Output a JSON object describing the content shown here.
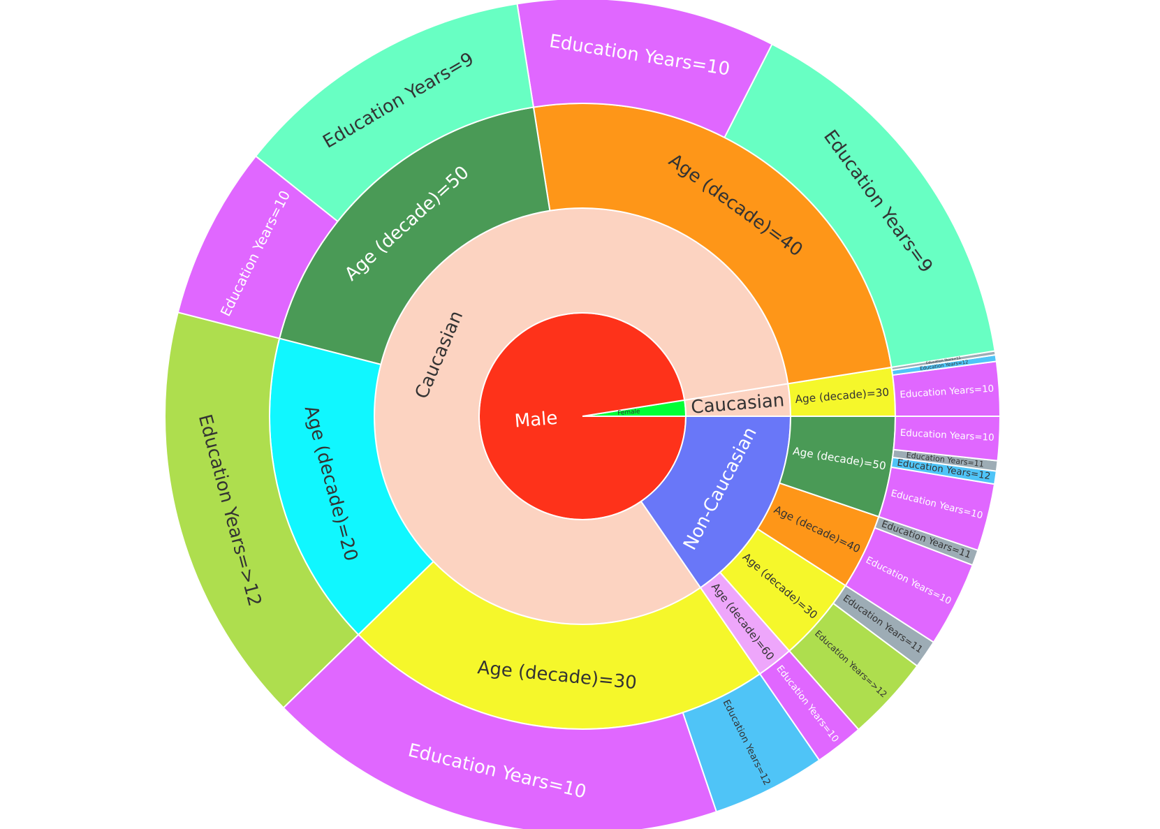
{
  "chart_data": {
    "type": "sunburst",
    "rotation_start": "3 o'clock, counterclockwise",
    "root": {
      "children": [
        {
          "label": "Female",
          "value": 2.5,
          "color": "#00FE35",
          "text_color": "#333333",
          "children": [
            {
              "label": "Caucasian",
              "value": 2.5,
              "color": "#FCD3C1",
              "text_color": "#333333",
              "children": [
                {
                  "label": "Age (decade)=30",
                  "value": 2.5,
                  "color": "#F5F72B",
                  "text_color": "#333333",
                  "children": [
                    {
                      "label": "Education Years=10",
                      "value": 2.1,
                      "color": "#E067FF",
                      "text_color": "#FFFFFF"
                    },
                    {
                      "label": "Education Years=12",
                      "value": 0.25,
                      "color": "#4FC4F7",
                      "text_color": "#333333"
                    },
                    {
                      "label": "Education Years=11",
                      "value": 0.15,
                      "color": "#9DACB5",
                      "text_color": "#333333"
                    }
                  ]
                }
              ]
            }
          ]
        },
        {
          "label": "Male",
          "value": 97.5,
          "color": "#FE321A",
          "text_color": "#FFFFFF",
          "children": [
            {
              "label": "Caucasian",
              "value": 82.1,
              "color": "#FCD3C1",
              "text_color": "#333333",
              "children": [
                {
                  "label": "Age (decade)=40",
                  "value": 25.0,
                  "color": "#FE9618",
                  "text_color": "#333333",
                  "children": [
                    {
                      "label": "Education Years=9",
                      "value": 15.0,
                      "color": "#68FFC3",
                      "text_color": "#333333"
                    },
                    {
                      "label": "Education Years=10",
                      "value": 10.0,
                      "color": "#E067FF",
                      "text_color": "#FFFFFF"
                    }
                  ]
                },
                {
                  "label": "Age (decade)=50",
                  "value": 18.5,
                  "color": "#4A9A56",
                  "text_color": "#FFFFFF",
                  "children": [
                    {
                      "label": "Education Years=9",
                      "value": 11.8,
                      "color": "#68FFC3",
                      "text_color": "#333333"
                    },
                    {
                      "label": "Education Years=10",
                      "value": 6.7,
                      "color": "#E067FF",
                      "text_color": "#FFFFFF"
                    }
                  ]
                },
                {
                  "label": "Age (decade)=20",
                  "value": 16.3,
                  "color": "#10F7FF",
                  "text_color": "#333333",
                  "children": [
                    {
                      "label": "Education Years=>12",
                      "value": 16.3,
                      "color": "#AEDE4E",
                      "text_color": "#333333"
                    }
                  ]
                },
                {
                  "label": "Age (decade)=30",
                  "value": 22.3,
                  "color": "#F5F72B",
                  "text_color": "#333333",
                  "children": [
                    {
                      "label": "Education Years=10",
                      "value": 17.9,
                      "color": "#E067FF",
                      "text_color": "#FFFFFF"
                    },
                    {
                      "label": "Education Years=12",
                      "value": 4.4,
                      "color": "#4FC4F7",
                      "text_color": "#333333"
                    }
                  ]
                }
              ]
            },
            {
              "label": "Non-Caucasian",
              "value": 15.4,
              "color": "#6977F8",
              "text_color": "#FFFFFF",
              "children": [
                {
                  "label": "Age (decade)=60",
                  "value": 1.9,
                  "color": "#EEA6FB",
                  "text_color": "#333333",
                  "children": [
                    {
                      "label": "Education Years=10",
                      "value": 1.9,
                      "color": "#E067FF",
                      "text_color": "#FFFFFF"
                    }
                  ]
                },
                {
                  "label": "Age (decade)=30",
                  "value": 4.4,
                  "color": "#F5F72B",
                  "text_color": "#333333",
                  "children": [
                    {
                      "label": "Education Years=>12",
                      "value": 3.3,
                      "color": "#AEDE4E",
                      "text_color": "#333333"
                    },
                    {
                      "label": "Education Years=11",
                      "value": 1.1,
                      "color": "#9DACB5",
                      "text_color": "#333333"
                    }
                  ]
                },
                {
                  "label": "Age (decade)=40",
                  "value": 3.9,
                  "color": "#FE9618",
                  "text_color": "#333333",
                  "children": [
                    {
                      "label": "Education Years=10",
                      "value": 3.3,
                      "color": "#E067FF",
                      "text_color": "#FFFFFF"
                    },
                    {
                      "label": "Education Years=11",
                      "value": 0.6,
                      "color": "#9DACB5",
                      "text_color": "#333333"
                    }
                  ]
                },
                {
                  "label": "Age (decade)=50",
                  "value": 5.2,
                  "color": "#4A9A56",
                  "text_color": "#FFFFFF",
                  "children": [
                    {
                      "label": "Education Years=10",
                      "value": 2.6,
                      "color": "#E067FF",
                      "text_color": "#FFFFFF"
                    },
                    {
                      "label": "Education Years=12",
                      "value": 0.5,
                      "color": "#4FC4F7",
                      "text_color": "#333333"
                    },
                    {
                      "label": "Education Years=11",
                      "value": 0.4,
                      "color": "#9DACB5",
                      "text_color": "#333333"
                    },
                    {
                      "label": "Education Years=10",
                      "value": 1.7,
                      "color": "#E067FF",
                      "text_color": "#FFFFFF"
                    }
                  ]
                }
              ]
            }
          ]
        }
      ]
    }
  }
}
